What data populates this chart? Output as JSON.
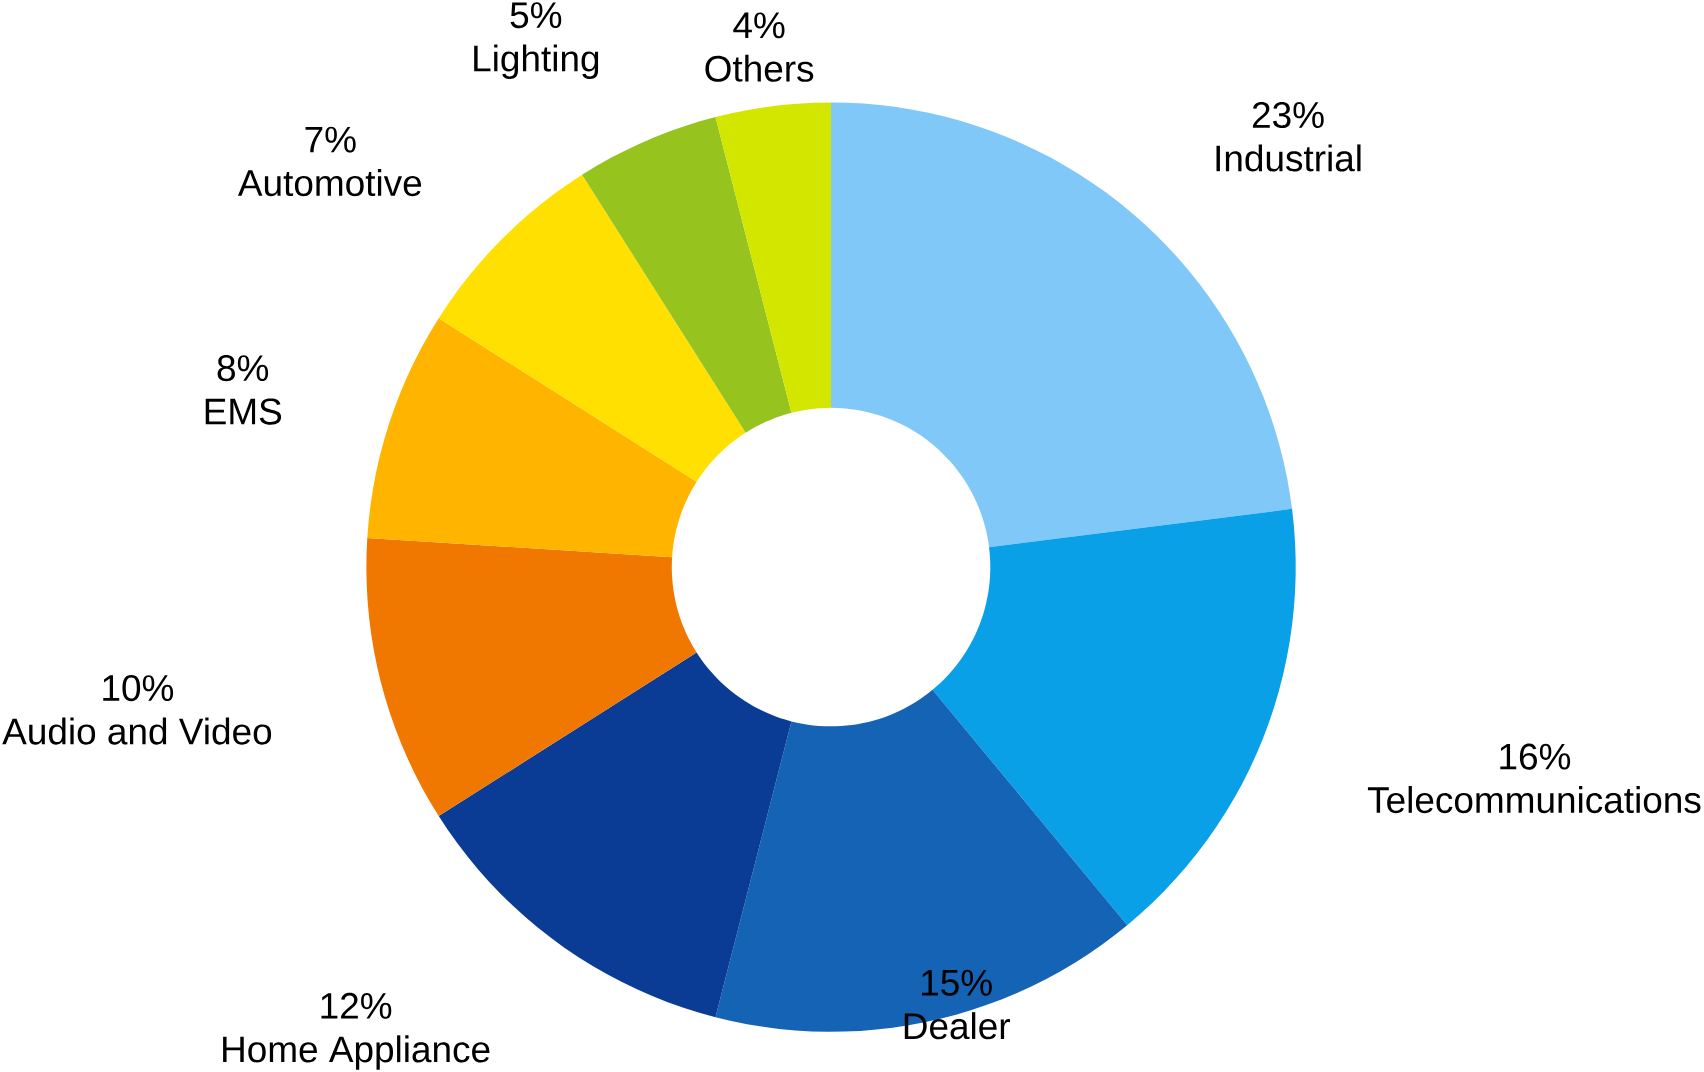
{
  "chart_data": {
    "type": "donut",
    "categories": [
      "Industrial",
      "Telecommunications",
      "Dealer",
      "Home Appliance",
      "Audio and Video",
      "EMS",
      "Automotive",
      "Lighting",
      "Others"
    ],
    "values": [
      23,
      16,
      15,
      12,
      10,
      8,
      7,
      5,
      4
    ],
    "value_labels": [
      "23%",
      "16%",
      "15%",
      "12%",
      "10%",
      "8%",
      "7%",
      "5%",
      "4%"
    ],
    "colors": [
      "#7fc8f8",
      "#0aa0e8",
      "#1463b4",
      "#0a3c96",
      "#f07800",
      "#ffb400",
      "#ffe000",
      "#96c31e",
      "#d2e600"
    ]
  }
}
